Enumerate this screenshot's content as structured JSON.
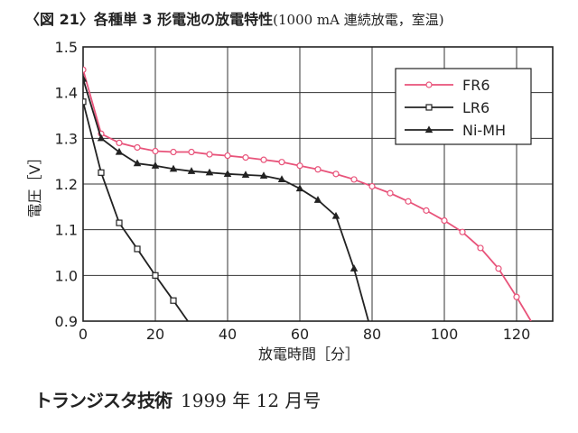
{
  "figure": {
    "title_main": "〈図 21〉各種単 3 形電池の放電特性",
    "title_cond": "(1000 mA 連続放電，室温)"
  },
  "source": {
    "magazine": "トランジスタ技術",
    "issue": "1999 年 12 月号"
  },
  "chart_data": {
    "type": "line",
    "title": "",
    "xlabel": "放電時間［分］",
    "ylabel": "電圧［V］",
    "xlim": [
      0,
      130
    ],
    "ylim": [
      0.9,
      1.5
    ],
    "xticks": [
      0,
      20,
      40,
      60,
      80,
      100,
      120
    ],
    "yticks": [
      0.9,
      1.0,
      1.1,
      1.2,
      1.3,
      1.4,
      1.5
    ],
    "xtick_labels": [
      "0",
      "20",
      "40",
      "60",
      "80",
      "100",
      "120"
    ],
    "ytick_labels": [
      "0.9",
      "1.0",
      "1.1",
      "1.2",
      "1.3",
      "1.4",
      "1.5"
    ],
    "grid": true,
    "legend_position": "top-right",
    "series": [
      {
        "name": "FR6",
        "color": "#e8537a",
        "marker": "circle",
        "x": [
          0,
          5,
          10,
          15,
          20,
          25,
          30,
          35,
          40,
          45,
          50,
          55,
          60,
          65,
          70,
          75,
          80,
          85,
          90,
          95,
          100,
          105,
          110,
          115,
          120,
          124
        ],
        "y": [
          1.45,
          1.31,
          1.29,
          1.28,
          1.272,
          1.27,
          1.27,
          1.265,
          1.262,
          1.258,
          1.253,
          1.248,
          1.24,
          1.232,
          1.222,
          1.21,
          1.195,
          1.18,
          1.162,
          1.142,
          1.12,
          1.095,
          1.06,
          1.015,
          0.953,
          0.9
        ]
      },
      {
        "name": "LR6",
        "color": "#222222",
        "marker": "square",
        "x": [
          0,
          5,
          10,
          15,
          20,
          25,
          29
        ],
        "y": [
          1.38,
          1.225,
          1.115,
          1.058,
          1.0,
          0.945,
          0.9
        ]
      },
      {
        "name": "Ni-MH",
        "color": "#222222",
        "marker": "triangle",
        "x": [
          0,
          5,
          10,
          15,
          20,
          25,
          30,
          35,
          40,
          45,
          50,
          55,
          60,
          65,
          70,
          75,
          79
        ],
        "y": [
          1.43,
          1.3,
          1.27,
          1.245,
          1.24,
          1.233,
          1.228,
          1.225,
          1.222,
          1.22,
          1.218,
          1.21,
          1.19,
          1.165,
          1.13,
          1.015,
          0.9
        ]
      }
    ]
  }
}
